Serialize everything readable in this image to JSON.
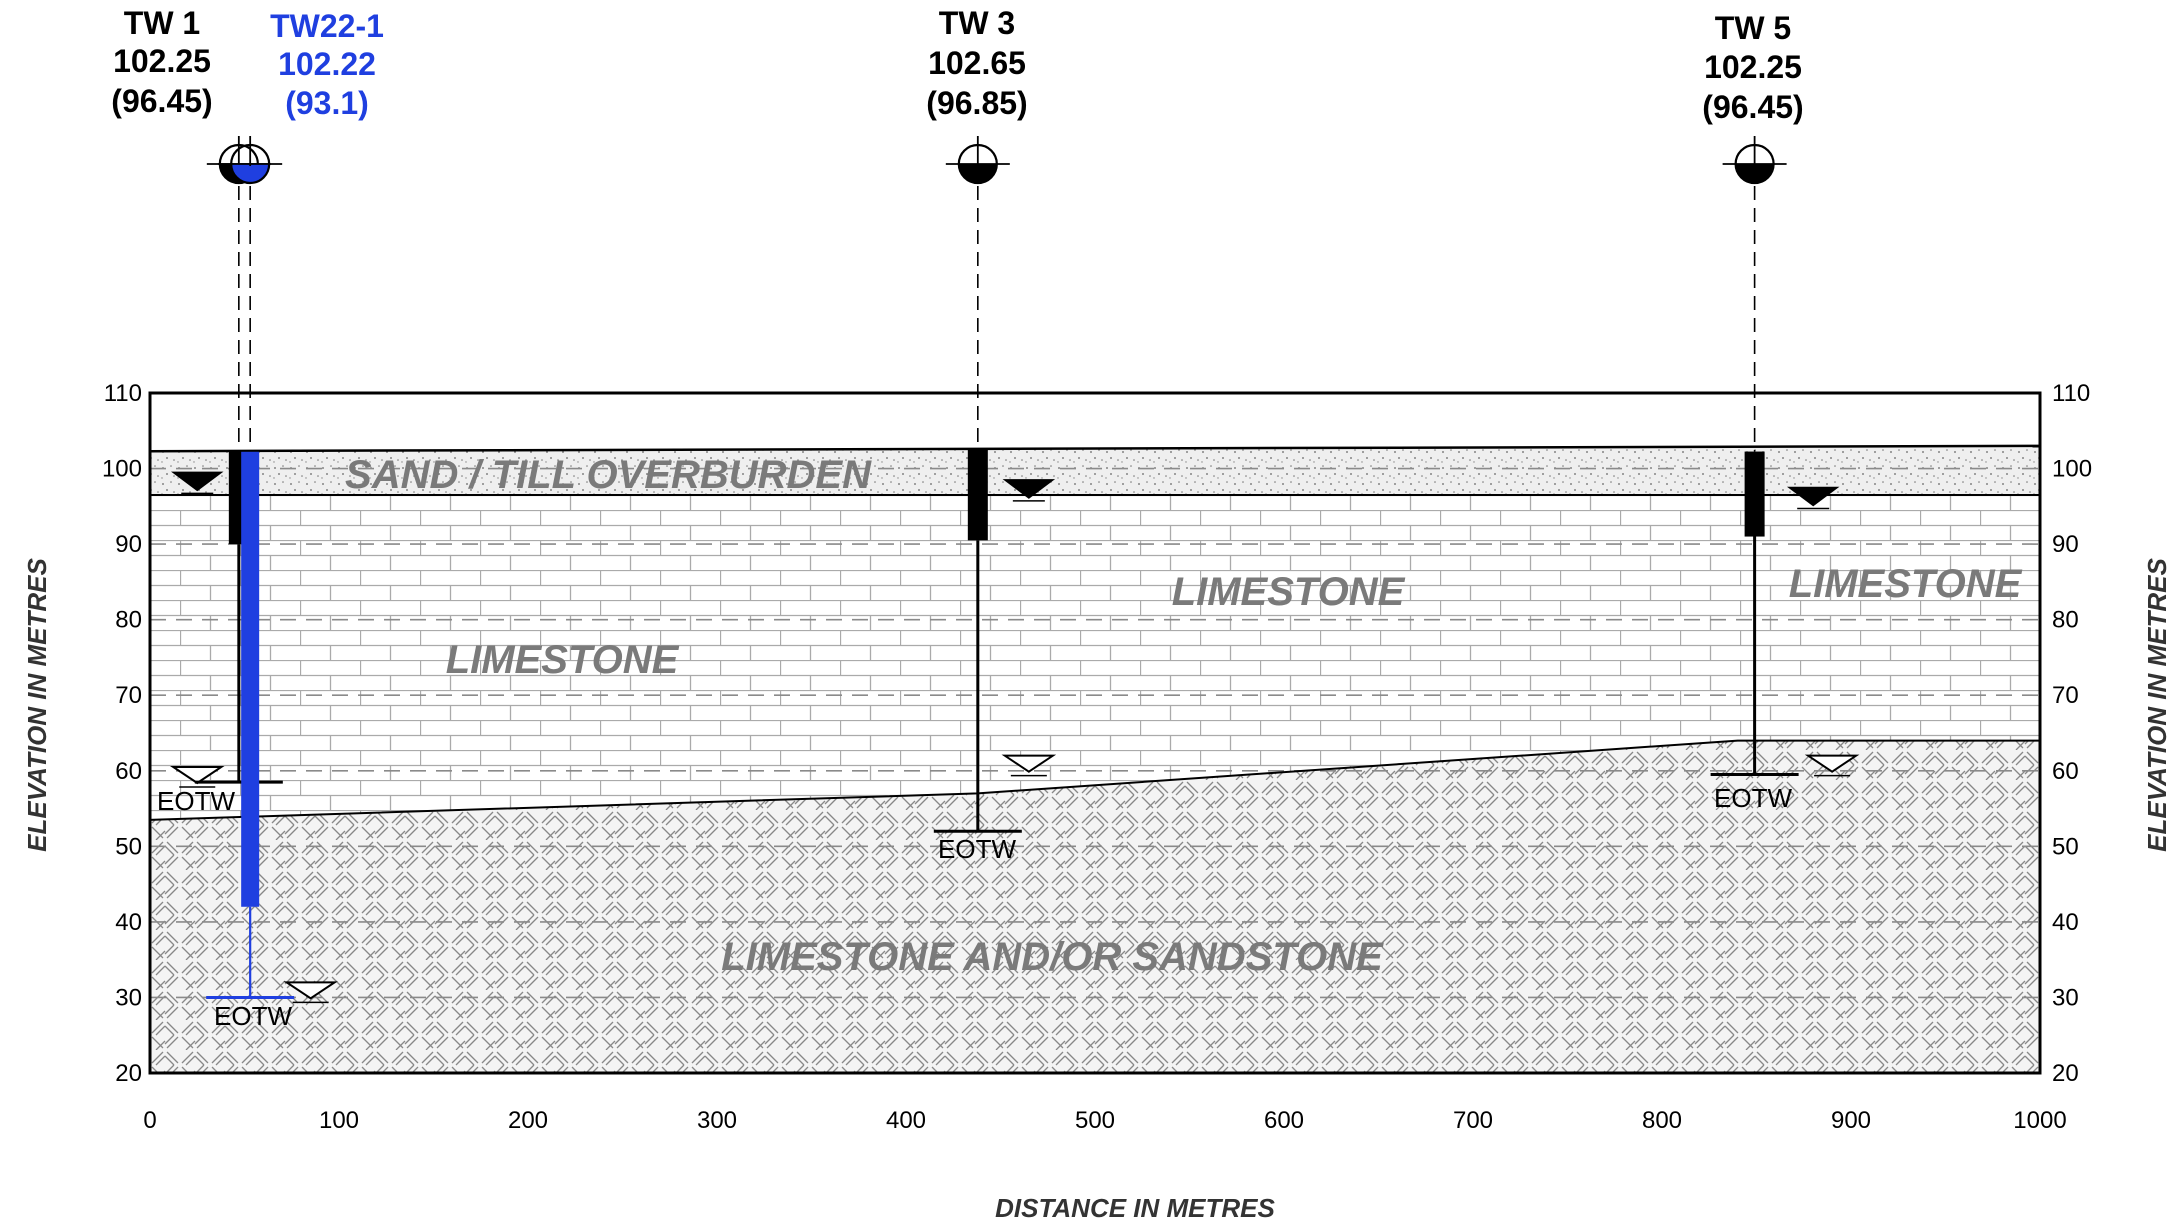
{
  "wells": [
    {
      "id": "TW 1",
      "elevation": "102.25",
      "water_level": "(96.45)",
      "x": 47,
      "top": 102.25,
      "casing_bottom": 90,
      "bottom": 58.5,
      "wl": 96.45,
      "color": "#000000"
    },
    {
      "id": "TW22-1",
      "elevation": "102.22",
      "water_level": "(93.1)",
      "x": 53,
      "top": 102.22,
      "casing_bottom": 42,
      "bottom": 30,
      "wl": 93.1,
      "color": "#1f3fe0"
    },
    {
      "id": "TW 3",
      "elevation": "102.65",
      "water_level": "(96.85)",
      "x": 438,
      "top": 102.65,
      "casing_bottom": 90.5,
      "bottom": 52,
      "wl": 96.85,
      "color": "#000000"
    },
    {
      "id": "TW 5",
      "elevation": "102.25",
      "water_level": "(96.45)",
      "x": 849,
      "top": 102.25,
      "casing_bottom": 91,
      "bottom": 59.5,
      "wl": 96.45,
      "color": "#000000"
    }
  ],
  "eotw_label": "EOTW",
  "units": {
    "overburden": "SAND / TILL OVERBURDEN",
    "limestone": "LIMESTONE",
    "lower": "LIMESTONE AND/OR SANDSTONE"
  },
  "axes": {
    "ylabel": "ELEVATION IN METRES",
    "xlabel": "DISTANCE IN METRES",
    "y_ticks": [
      "110",
      "100",
      "90",
      "80",
      "70",
      "60",
      "50",
      "40",
      "30",
      "20"
    ],
    "x_ticks": [
      "0",
      "100",
      "200",
      "300",
      "400",
      "500",
      "600",
      "700",
      "800",
      "900",
      "1000"
    ]
  },
  "chart_data": {
    "type": "cross-section",
    "xlim": [
      0,
      1000
    ],
    "ylim": [
      20,
      110
    ],
    "ground_surface": [
      [
        0,
        102.3
      ],
      [
        1000,
        103
      ]
    ],
    "overburden_base": [
      [
        0,
        96.5
      ],
      [
        1000,
        96.5
      ]
    ],
    "limestone_base": [
      [
        0,
        53.5
      ],
      [
        438,
        57
      ],
      [
        840,
        64
      ],
      [
        1000,
        64
      ]
    ],
    "dashed_elevations": [
      100,
      90,
      80,
      70,
      60,
      50,
      40,
      30
    ],
    "hollow_water_markers": [
      [
        25,
        60.5
      ],
      [
        85,
        32
      ],
      [
        465,
        62
      ],
      [
        890,
        62
      ]
    ],
    "filled_water_markers": [
      [
        25,
        99.5
      ],
      [
        465,
        98.5
      ],
      [
        880,
        97.5
      ]
    ],
    "colors": {
      "tw22": "#1f3fe0",
      "unit_text": "#7a7a7a",
      "grid": "#8a8a8a"
    }
  }
}
